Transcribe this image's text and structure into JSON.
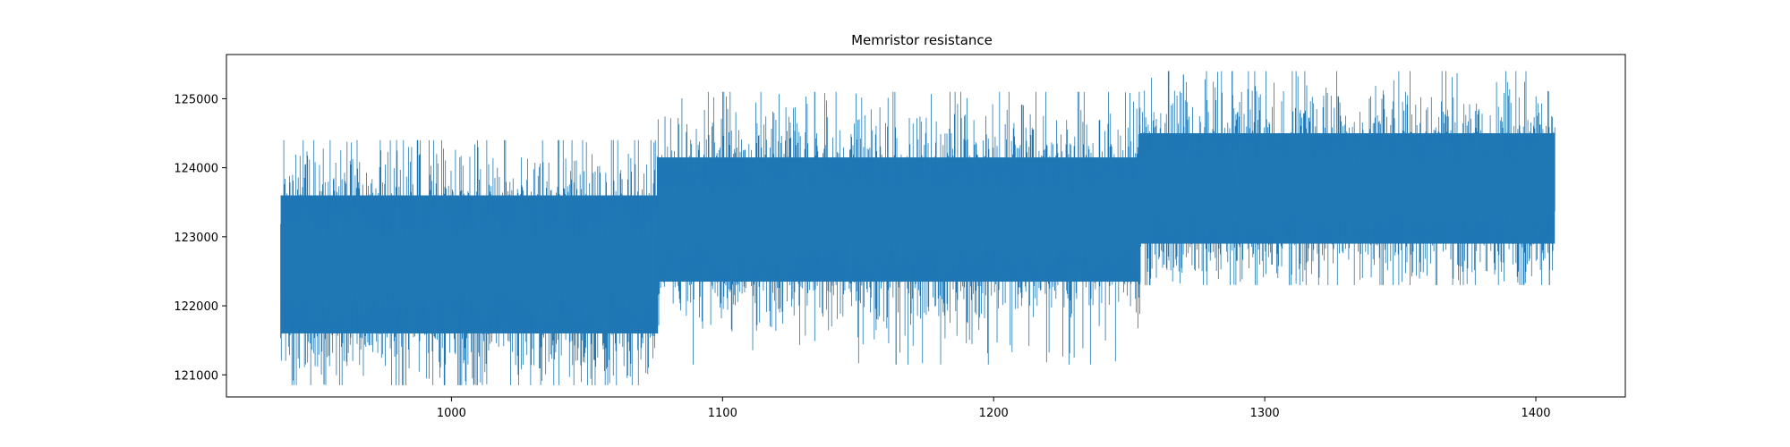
{
  "chart_data": {
    "type": "line",
    "title": "Memristor resistance",
    "xlabel": "",
    "ylabel": "",
    "xlim": [
      917,
      1433
    ],
    "ylim": [
      120680,
      125640
    ],
    "x_ticks": [
      1000,
      1100,
      1200,
      1300,
      1400
    ],
    "y_ticks": [
      121000,
      122000,
      123000,
      124000,
      125000
    ],
    "grid": false,
    "legend": "none",
    "series_color": "#1f77b4",
    "series": [
      {
        "x_range": [
          937,
          1407
        ],
        "segments": [
          {
            "x": [
              937,
              1076
            ],
            "mean": 122600,
            "low": 121600,
            "high": 123600,
            "min": 120850,
            "max": 124400
          },
          {
            "x": [
              1076,
              1254
            ],
            "mean": 123250,
            "low": 122350,
            "high": 124150,
            "min": 121150,
            "max": 125100
          },
          {
            "x": [
              1254,
              1407
            ],
            "mean": 123700,
            "low": 122900,
            "high": 124500,
            "min": 122300,
            "max": 125400
          }
        ],
        "notable_points": [
          {
            "x": 1164,
            "y": 121150
          },
          {
            "x": 1134,
            "y": 125100
          },
          {
            "x": 1288,
            "y": 125400
          },
          {
            "x": 1270,
            "y": 125350
          },
          {
            "x": 953,
            "y": 120860
          },
          {
            "x": 1405,
            "y": 122300
          }
        ]
      }
    ]
  }
}
